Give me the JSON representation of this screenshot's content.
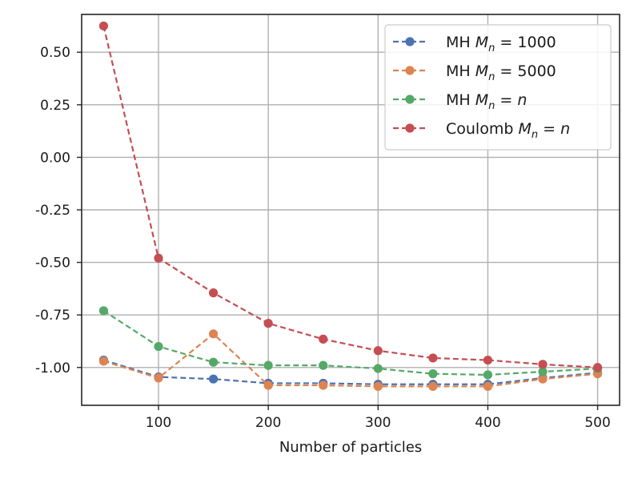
{
  "chart_data": {
    "type": "line",
    "title": "",
    "xlabel": "Number of particles",
    "ylabel": "",
    "xlim": [
      30,
      520
    ],
    "ylim": [
      -1.18,
      0.68
    ],
    "grid": true,
    "legend_position": "top-right",
    "x": [
      50,
      100,
      150,
      200,
      250,
      300,
      350,
      400,
      450,
      500
    ],
    "x_ticks": [
      100,
      200,
      300,
      400,
      500
    ],
    "x_tick_labels": [
      "100",
      "200",
      "300",
      "400",
      "500"
    ],
    "y_ticks": [
      0.5,
      0.25,
      0.0,
      -0.25,
      -0.5,
      -0.75,
      -1.0
    ],
    "y_tick_labels": [
      "0.50",
      "0.25",
      "0.00",
      "-0.25",
      "-0.50",
      "-0.75",
      "-1.00"
    ],
    "series": [
      {
        "name": "MH M_n = 1000",
        "legend_prefix": "MH ",
        "legend_var": "M",
        "legend_sub": "n",
        "legend_suffix": " = 1000",
        "color": "#4c72b0",
        "values": [
          -0.965,
          -1.045,
          -1.055,
          -1.075,
          -1.075,
          -1.08,
          -1.08,
          -1.08,
          -1.05,
          -1.025
        ]
      },
      {
        "name": "MH M_n = 5000",
        "legend_prefix": "MH ",
        "legend_var": "M",
        "legend_sub": "n",
        "legend_suffix": " = 5000",
        "color": "#dd8452",
        "values": [
          -0.97,
          -1.05,
          -0.84,
          -1.085,
          -1.085,
          -1.09,
          -1.09,
          -1.09,
          -1.055,
          -1.03
        ]
      },
      {
        "name": "MH M_n = n",
        "legend_prefix": "MH ",
        "legend_var": "M",
        "legend_sub": "n",
        "legend_suffix": " = ",
        "legend_tail": "n",
        "color": "#55a868",
        "values": [
          -0.73,
          -0.9,
          -0.975,
          -0.99,
          -0.99,
          -1.005,
          -1.03,
          -1.035,
          -1.02,
          -1.005
        ]
      },
      {
        "name": "Coulomb M_n = n",
        "legend_prefix": "Coulomb ",
        "legend_var": "M",
        "legend_sub": "n",
        "legend_suffix": " = ",
        "legend_tail": "n",
        "color": "#c44e52",
        "values": [
          0.625,
          -0.48,
          -0.645,
          -0.79,
          -0.865,
          -0.92,
          -0.955,
          -0.965,
          -0.985,
          -1.0
        ]
      }
    ]
  }
}
